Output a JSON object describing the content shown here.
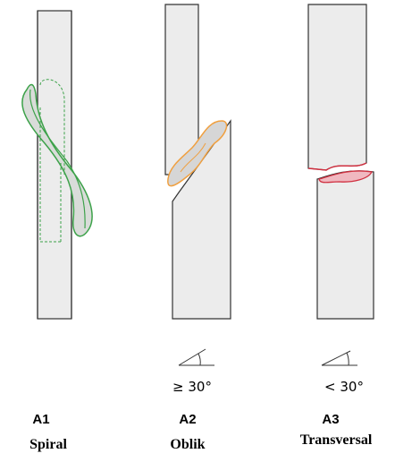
{
  "panels": [
    {
      "code": "A1",
      "label": "Spiral"
    },
    {
      "code": "A2",
      "label": "Oblik",
      "angle": "≥ 30°"
    },
    {
      "code": "A3",
      "label": "Transversal",
      "angle": "< 30°"
    }
  ]
}
